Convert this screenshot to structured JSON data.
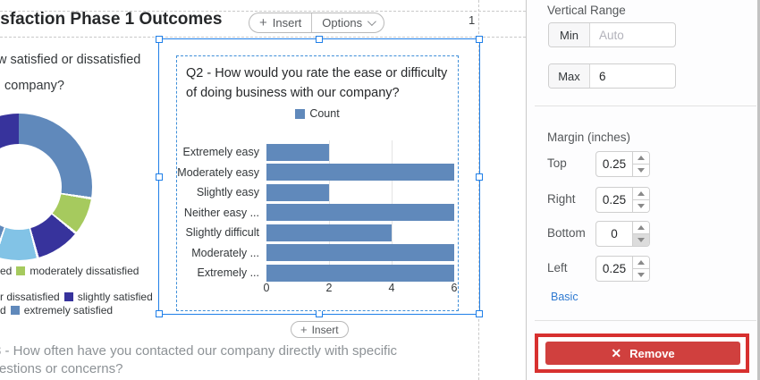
{
  "canvas": {
    "report_title": "isfaction Phase 1 Outcomes",
    "page_number": "1",
    "toolbar": {
      "insert_label": "Insert",
      "options_label": "Options"
    },
    "bottom_insert_label": "Insert"
  },
  "q1": {
    "title_line1": "w satisfied or dissatisfied",
    "title_line2": "company?",
    "legend_rows": [
      {
        "prefix": "ed",
        "label": "moderately dissatisfied",
        "swatch_color": "#a6ca5e"
      },
      {
        "prefix": "r dissatisfied",
        "label": "slightly satisfied",
        "swatch_color": "#37339c"
      },
      {
        "prefix": "d",
        "label": "extremely satisfied",
        "swatch_color": "#6089bb"
      }
    ]
  },
  "widget": {
    "title_line1": "Q2 - How would you rate the ease or difficulty",
    "title_line2": "of doing business with our company?",
    "legend_label": "Count"
  },
  "q3": {
    "line1": "3 - How often have you contacted our company directly with specific",
    "line2": "estions or concerns?"
  },
  "chart_data": [
    {
      "type": "bar",
      "orientation": "horizontal",
      "title": "Q2 - How would you rate the ease or difficulty of doing business with our company?",
      "legend": [
        "Count"
      ],
      "legend_position": "top-center",
      "categories": [
        "Extremely easy",
        "Moderately easy",
        "Slightly easy",
        "Neither easy ...",
        "Slightly difficult",
        "Moderately ...",
        "Extremely ..."
      ],
      "values": [
        2,
        6,
        2,
        6,
        4,
        6,
        6
      ],
      "xlim": [
        0,
        6
      ],
      "xticks": [
        "0",
        "2",
        "4",
        "6"
      ],
      "grid": true,
      "bar_color": "#6089bb"
    },
    {
      "type": "pie",
      "subtype": "donut",
      "note": "partially cut off at left screen edge, no data labels visible",
      "visible_segment_colors": [
        "#6089bb",
        "#a6ca5e",
        "#37339c",
        "#82c3e6",
        "#6089bb",
        "#a6ca5e",
        "#37339c"
      ],
      "legend_labels_visible": [
        "moderately dissatisfied",
        "slightly satisfied",
        "extremely satisfied"
      ]
    }
  ],
  "panel": {
    "vertical_range": {
      "section_label": "Vertical Range",
      "min_label": "Min",
      "min_placeholder": "Auto",
      "max_label": "Max",
      "max_value": "6"
    },
    "margin": {
      "section_label": "Margin (inches)",
      "rows": [
        {
          "label": "Top",
          "value": "0.25"
        },
        {
          "label": "Right",
          "value": "0.25"
        },
        {
          "label": "Bottom",
          "value": "0"
        },
        {
          "label": "Left",
          "value": "0.25"
        }
      ]
    },
    "basic_link": "Basic",
    "remove_label": "Remove",
    "remove_icon": "x-icon"
  },
  "colors": {
    "selection_blue": "#1f7fe8",
    "bar_blue": "#6089bb",
    "green": "#a6ca5e",
    "indigo": "#37339c",
    "light_blue": "#82c3e6",
    "remove_red": "#d0403e",
    "annotation_red": "#d7302f",
    "link_blue": "#2f7ad1"
  }
}
